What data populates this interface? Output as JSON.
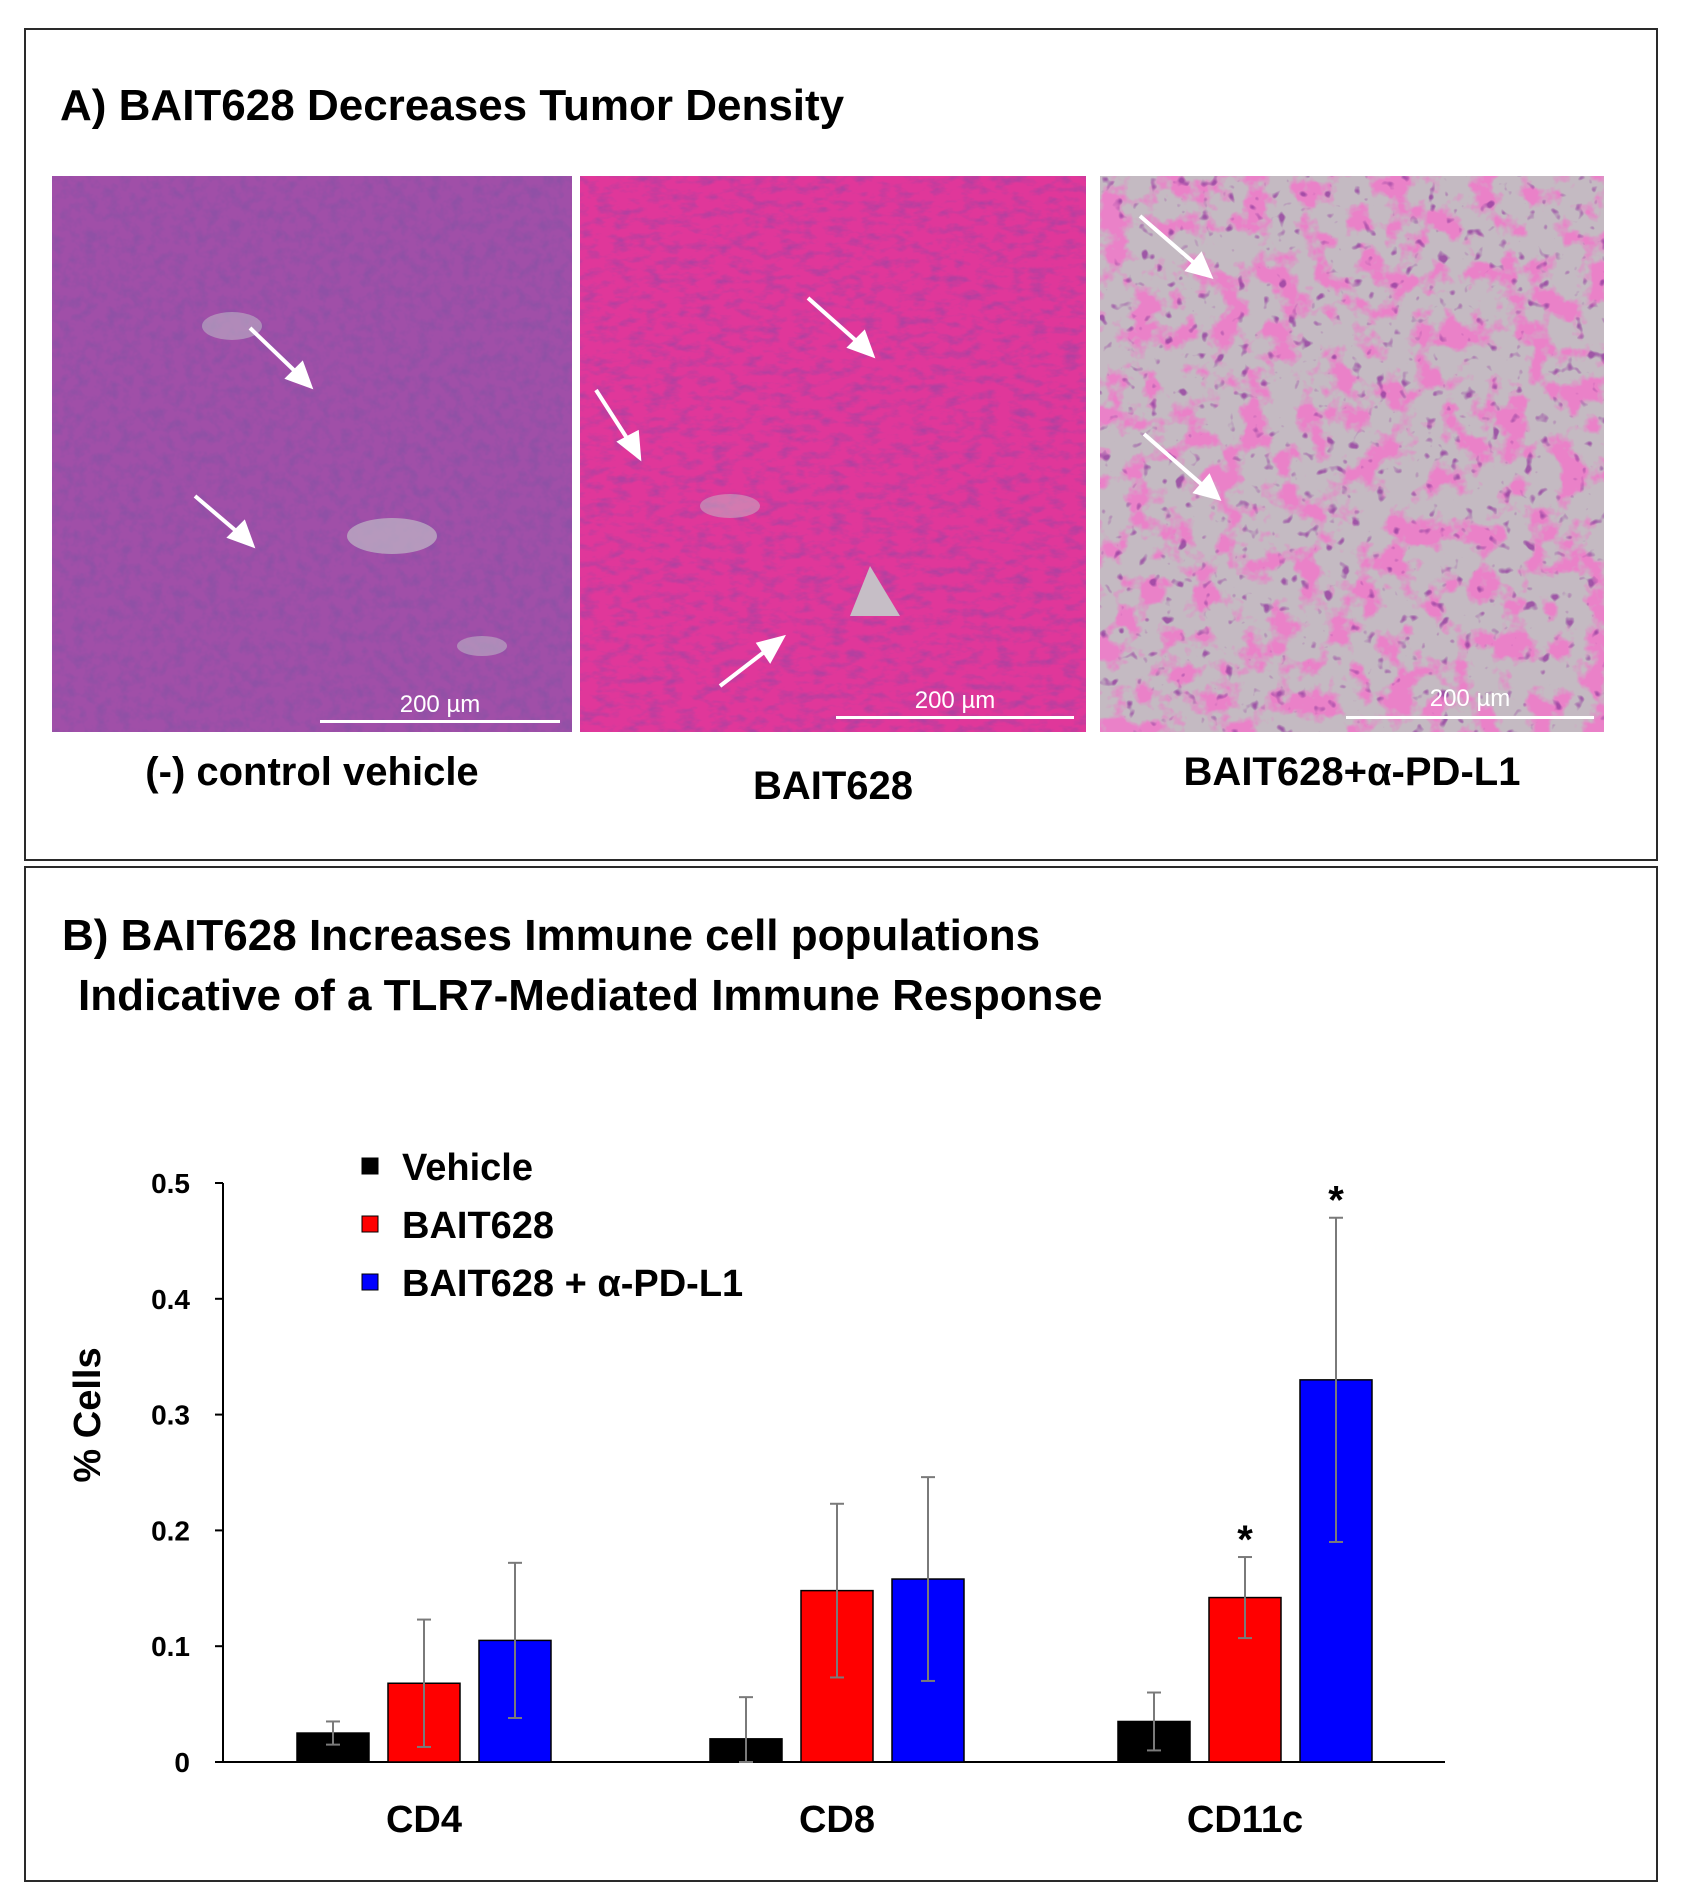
{
  "panel_a": {
    "title": "A) BAIT628 Decreases Tumor Density",
    "images": [
      {
        "caption": "(-) control vehicle",
        "scale_label": "200 µm",
        "stain": "purple"
      },
      {
        "caption": "BAIT628",
        "scale_label": "200 µm",
        "stain": "pink"
      },
      {
        "caption": "BAIT628+α-PD-L1",
        "scale_label": "200 µm",
        "stain": "sparse"
      }
    ]
  },
  "panel_b": {
    "title_line1": "B) BAIT628 Increases Immune cell populations",
    "title_line2": "Indicative of a TLR7-Mediated Immune Response"
  },
  "chart_data": {
    "type": "bar",
    "categories": [
      "CD4",
      "CD8",
      "CD11c"
    ],
    "ylabel": "% Cells",
    "xlabel": "",
    "ylim": [
      0,
      0.5
    ],
    "yticks": [
      0,
      0.1,
      0.2,
      0.3,
      0.4,
      0.5
    ],
    "ytick_labels": [
      "0",
      "0.1",
      "0.2",
      "0.3",
      "0.4",
      "0.5"
    ],
    "legend_position": "top-left",
    "grid": false,
    "series": [
      {
        "name": "Vehicle",
        "color": "#000000",
        "values": [
          0.025,
          0.02,
          0.035
        ],
        "errors": [
          0.01,
          0.036,
          0.025
        ],
        "significance": [
          "",
          "",
          ""
        ]
      },
      {
        "name": "BAIT628",
        "color": "#ff0000",
        "values": [
          0.068,
          0.148,
          0.142
        ],
        "errors": [
          0.055,
          0.075,
          0.035
        ],
        "significance": [
          "",
          "",
          "*"
        ]
      },
      {
        "name": "BAIT628 + α-PD-L1",
        "color": "#0000ff",
        "values": [
          0.105,
          0.158,
          0.33
        ],
        "errors": [
          0.067,
          0.088,
          0.14
        ],
        "significance": [
          "",
          "",
          "*"
        ]
      }
    ]
  }
}
